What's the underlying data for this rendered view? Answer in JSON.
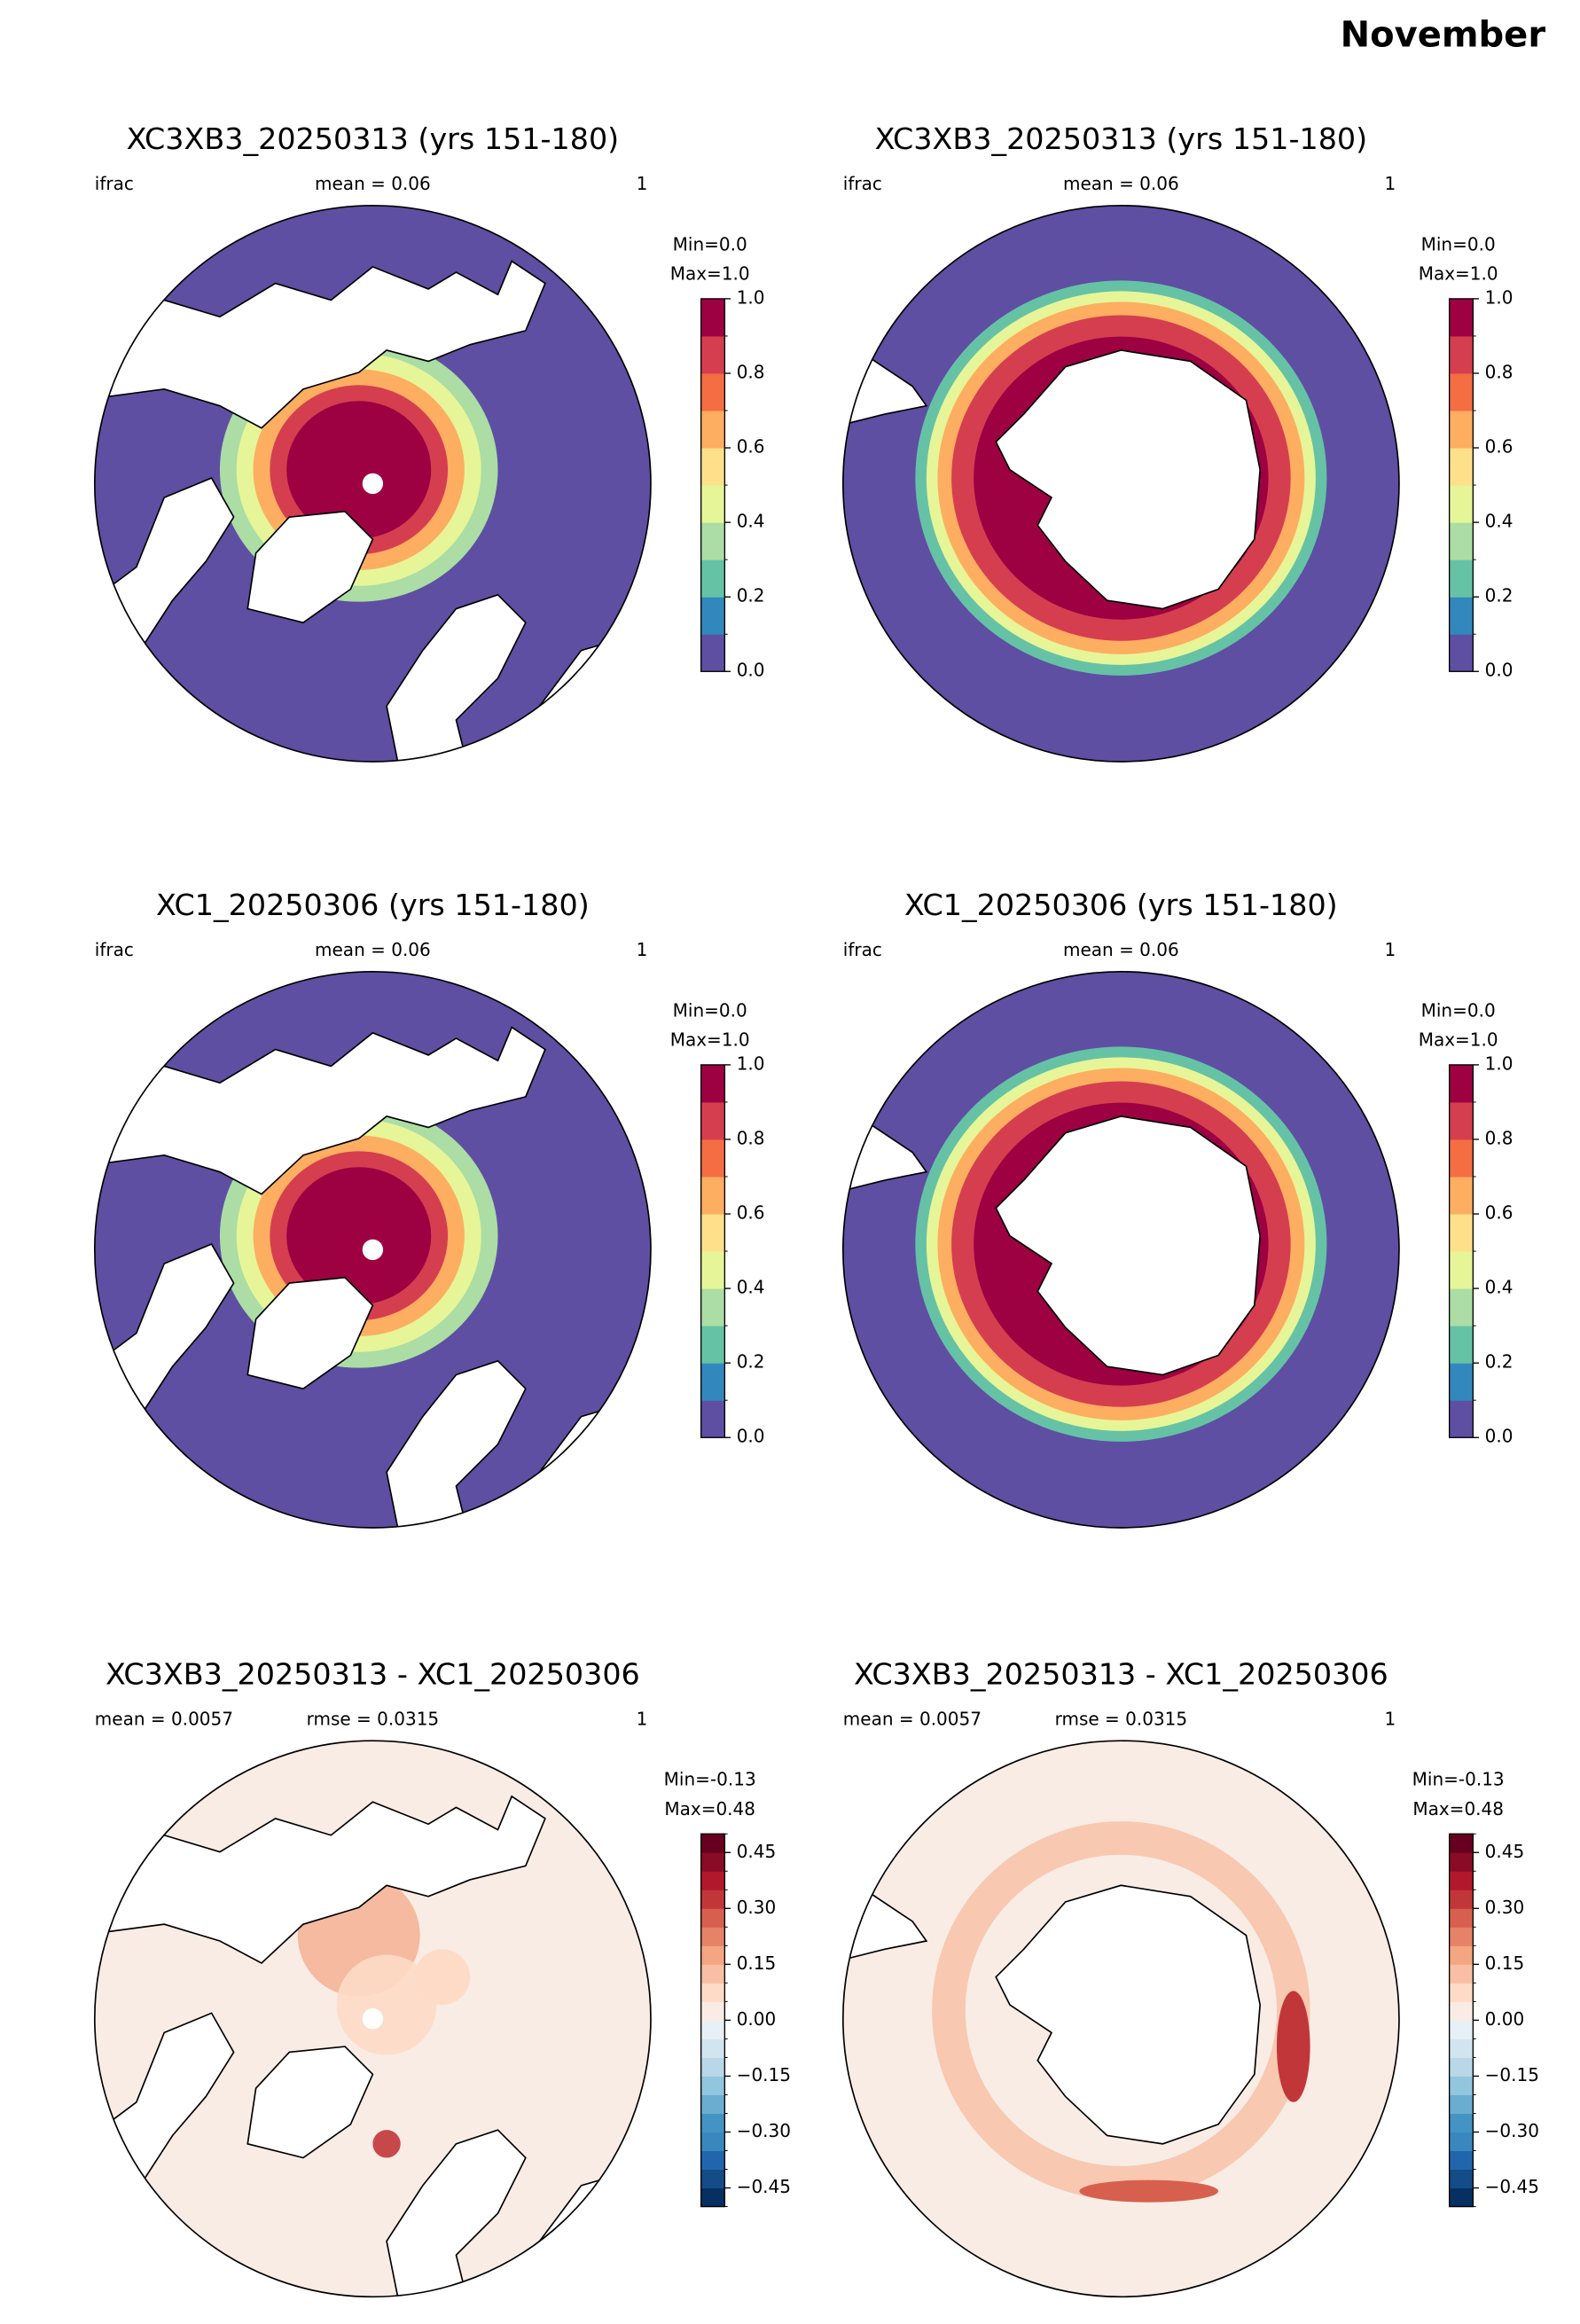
{
  "title": "November",
  "colormaps": {
    "spectral": {
      "bounds": [
        0,
        0.1,
        0.2,
        0.3,
        0.4,
        0.5,
        0.6,
        0.7,
        0.8,
        0.9,
        1.0
      ],
      "colors": [
        "#5e4fa2",
        "#3288bd",
        "#66c2a5",
        "#abdda4",
        "#e6f598",
        "#fee08b",
        "#fdae61",
        "#f46d43",
        "#d53e4f",
        "#9e0142"
      ]
    },
    "rdbu": {
      "bounds": [
        -0.5,
        -0.45,
        -0.4,
        -0.35,
        -0.3,
        -0.25,
        -0.2,
        -0.15,
        -0.1,
        -0.05,
        0,
        0.05,
        0.1,
        0.15,
        0.2,
        0.25,
        0.3,
        0.35,
        0.4,
        0.45,
        0.5
      ],
      "colors": [
        "#053061",
        "#134c87",
        "#2166ac",
        "#3a87bd",
        "#4393c3",
        "#6bacd1",
        "#92c5de",
        "#b8d8e8",
        "#d1e5f0",
        "#e7f0f4",
        "#f8ece5",
        "#fddbc7",
        "#f8bfa4",
        "#f4a582",
        "#e58267",
        "#d6604d",
        "#c13639",
        "#b2182b",
        "#8a0b25",
        "#67001f"
      ]
    }
  },
  "panels": [
    {
      "title": "XC3XB3_20250313 (yrs 151-180)",
      "left_label": "ifrac",
      "center_label": "mean = 0.06",
      "right_label": "1",
      "min_label": "Min=0.0",
      "max_label": "Max=1.0",
      "hemisphere": "north",
      "cmap": "spectral",
      "ticks": [
        {
          "value": 0,
          "label": "0.0"
        },
        0.2,
        0.4,
        0.6,
        0.8,
        {
          "value": 1,
          "label": "1.0"
        }
      ]
    },
    {
      "title": "XC3XB3_20250313 (yrs 151-180)",
      "left_label": "ifrac",
      "center_label": "mean = 0.06",
      "right_label": "1",
      "min_label": "Min=0.0",
      "max_label": "Max=1.0",
      "hemisphere": "south",
      "cmap": "spectral",
      "ticks": [
        {
          "value": 0,
          "label": "0.0"
        },
        0.2,
        0.4,
        0.6,
        0.8,
        {
          "value": 1,
          "label": "1.0"
        }
      ]
    },
    {
      "title": "XC1_20250306 (yrs 151-180)",
      "left_label": "ifrac",
      "center_label": "mean = 0.06",
      "right_label": "1",
      "min_label": "Min=0.0",
      "max_label": "Max=1.0",
      "hemisphere": "north",
      "cmap": "spectral",
      "ticks": [
        {
          "value": 0,
          "label": "0.0"
        },
        0.2,
        0.4,
        0.6,
        0.8,
        {
          "value": 1,
          "label": "1.0"
        }
      ]
    },
    {
      "title": "XC1_20250306 (yrs 151-180)",
      "left_label": "ifrac",
      "center_label": "mean = 0.06",
      "right_label": "1",
      "min_label": "Min=0.0",
      "max_label": "Max=1.0",
      "hemisphere": "south",
      "cmap": "spectral",
      "ticks": [
        {
          "value": 0,
          "label": "0.0"
        },
        0.2,
        0.4,
        0.6,
        0.8,
        {
          "value": 1,
          "label": "1.0"
        }
      ]
    },
    {
      "title": "XC3XB3_20250313 - XC1_20250306",
      "left_label": "mean = 0.0057",
      "center_label": "rmse = 0.0315",
      "right_label": "1",
      "min_label": "Min=-0.13",
      "max_label": "Max=0.48",
      "hemisphere": "north",
      "cmap": "rdbu",
      "difference": true,
      "ticks": [
        {
          "value": -0.45,
          "label": "−0.45"
        },
        {
          "value": -0.3,
          "label": "−0.30"
        },
        {
          "value": -0.15,
          "label": "−0.15"
        },
        {
          "value": 0,
          "label": "0.00"
        },
        0.15,
        {
          "value": 0.3,
          "label": "0.30"
        },
        0.45
      ]
    },
    {
      "title": "XC3XB3_20250313 - XC1_20250306",
      "left_label": "mean = 0.0057",
      "center_label": "rmse = 0.0315",
      "right_label": "1",
      "min_label": "Min=-0.13",
      "max_label": "Max=0.48",
      "hemisphere": "south",
      "cmap": "rdbu",
      "difference": true,
      "ticks": [
        {
          "value": -0.45,
          "label": "−0.45"
        },
        {
          "value": -0.3,
          "label": "−0.30"
        },
        {
          "value": -0.15,
          "label": "−0.15"
        },
        {
          "value": 0,
          "label": "0.00"
        },
        0.15,
        {
          "value": 0.3,
          "label": "0.30"
        },
        0.45
      ]
    }
  ]
}
